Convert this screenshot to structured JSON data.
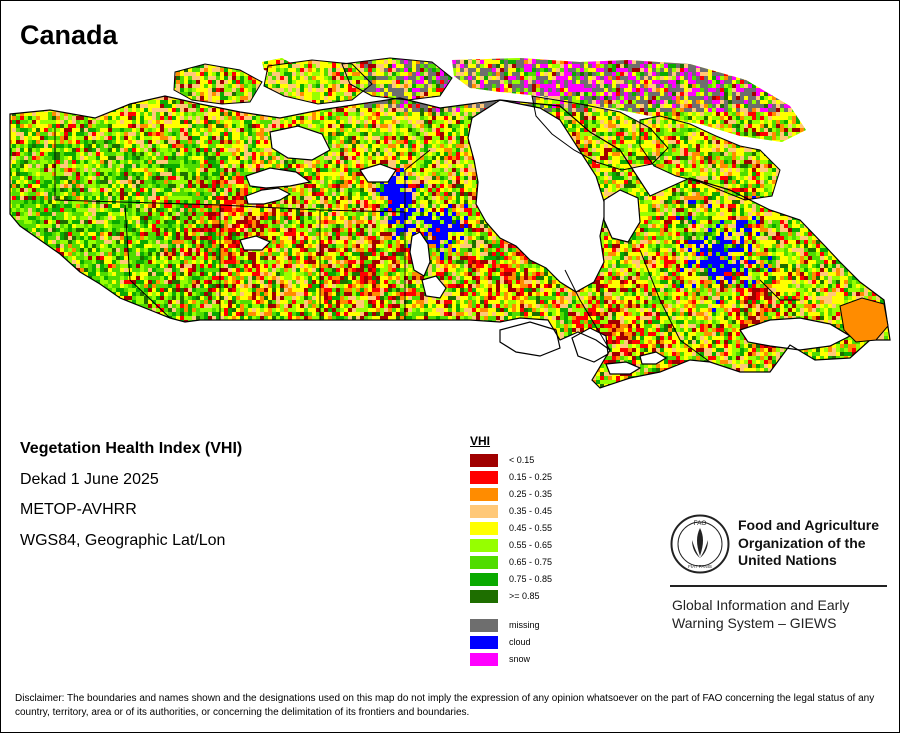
{
  "title": "Canada",
  "info": {
    "index_name": "Vegetation Health Index (VHI)",
    "period": "Dekad 1 June 2025",
    "sensor": "METOP-AVHRR",
    "projection": "WGS84, Geographic Lat/Lon"
  },
  "legend": {
    "title": "VHI",
    "classes": [
      {
        "label": "< 0.15",
        "color": "#a00000"
      },
      {
        "label": "0.15 - 0.25",
        "color": "#ff0000"
      },
      {
        "label": "0.25 - 0.35",
        "color": "#ff8c00"
      },
      {
        "label": "0.35 - 0.45",
        "color": "#ffc878"
      },
      {
        "label": "0.45 - 0.55",
        "color": "#ffff00"
      },
      {
        "label": "0.55 - 0.65",
        "color": "#96ff00"
      },
      {
        "label": "0.65 - 0.75",
        "color": "#50dc00"
      },
      {
        "label": "0.75 - 0.85",
        "color": "#0aaa00"
      },
      {
        "label": ">= 0.85",
        "color": "#1e6e00"
      }
    ],
    "special": [
      {
        "label": "missing",
        "color": "#6e6e6e"
      },
      {
        "label": "cloud",
        "color": "#0000ff"
      },
      {
        "label": "snow",
        "color": "#ff00ff"
      }
    ]
  },
  "fao": {
    "emblem_text": "FAO",
    "emblem_motto": "FIAT PANIS",
    "name_line1": "Food and Agriculture",
    "name_line2": "Organization of the",
    "name_line3": "United Nations",
    "giews_line1": "Global Information and Early",
    "giews_line2": "Warning System – GIEWS"
  },
  "disclaimer": "Disclaimer: The boundaries and names shown and the designations used on this map do not imply the expression of any opinion whatsoever on the part of FAO concerning the legal status of any country, territory, area or of its authorities, or concerning the delimitation of its frontiers and boundaries."
}
